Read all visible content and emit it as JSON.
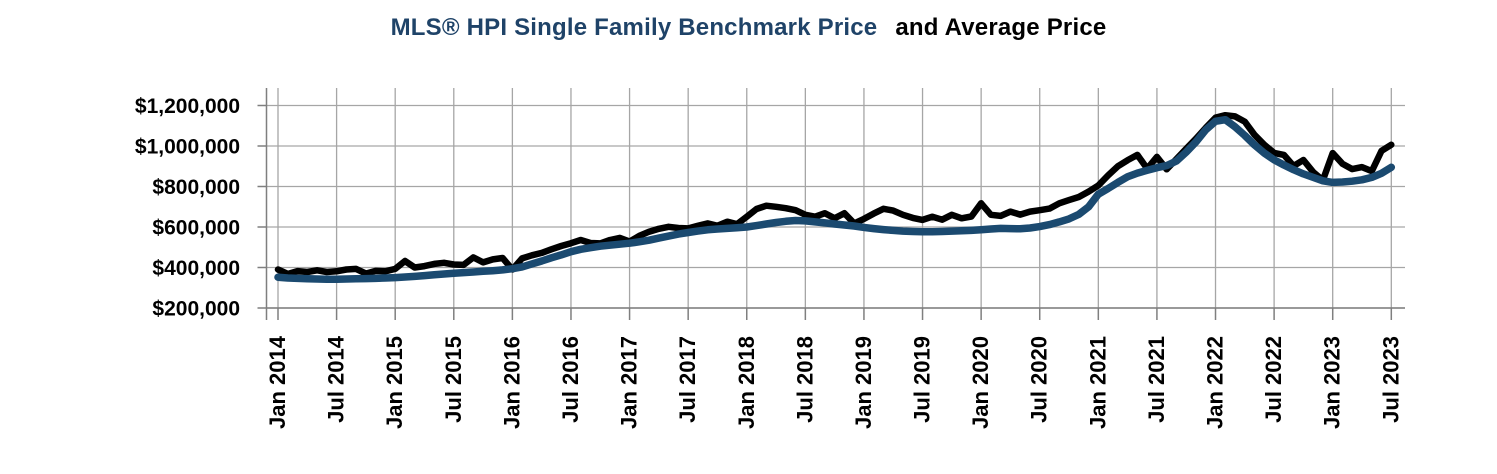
{
  "title": {
    "part1": "MLS® HPI Single Family Benchmark Price",
    "part2": "and Average Price"
  },
  "colors": {
    "title_accent": "#1F4368",
    "title_plain": "#000000",
    "benchmark_line": "#1B4A70",
    "average_line": "#000000",
    "gridline": "#A6A6A6",
    "axis": "#7F7F7F"
  },
  "chart_data": {
    "type": "line",
    "title": "MLS® HPI Single Family Benchmark Price and Average Price",
    "x_frequency": "monthly",
    "x_start": "Jan 2014",
    "x_end": "Jul 2023",
    "x_tick_labels": [
      "Jan 2014",
      "Jul 2014",
      "Jan 2015",
      "Jul 2015",
      "Jan 2016",
      "Jul 2016",
      "Jan 2017",
      "Jul 2017",
      "Jan 2018",
      "Jul 2018",
      "Jan 2019",
      "Jul 2019",
      "Jan 2020",
      "Jul 2020",
      "Jan 2021",
      "Jul 2021",
      "Jan 2022",
      "Jul 2022",
      "Jan 2023",
      "Jul 2023"
    ],
    "y_tick_labels": [
      "$200,000",
      "$400,000",
      "$600,000",
      "$800,000",
      "$1,000,000",
      "$1,200,000"
    ],
    "y_tick_values": [
      200000,
      400000,
      600000,
      800000,
      1000000,
      1200000
    ],
    "ylim": [
      200000,
      1200000
    ],
    "grid": true,
    "legend": "none",
    "series": [
      {
        "name": "Average Price",
        "color": "#000000",
        "values": [
          390000,
          368000,
          382000,
          378000,
          386000,
          378000,
          381000,
          390000,
          393000,
          370000,
          383000,
          381000,
          393000,
          432000,
          400000,
          407000,
          418000,
          423000,
          415000,
          413000,
          450000,
          425000,
          440000,
          447000,
          390000,
          445000,
          460000,
          472000,
          490000,
          506000,
          520000,
          536000,
          521000,
          519000,
          536000,
          546000,
          528000,
          556000,
          577000,
          591000,
          601000,
          595000,
          593000,
          606000,
          618000,
          606000,
          626000,
          614000,
          651000,
          689000,
          705000,
          700000,
          693000,
          683000,
          660000,
          651000,
          668000,
          643000,
          668000,
          618000,
          640000,
          666000,
          690000,
          681000,
          660000,
          645000,
          635000,
          651000,
          636000,
          660000,
          643000,
          652000,
          717000,
          660000,
          655000,
          676000,
          661000,
          676000,
          683000,
          691000,
          717000,
          733000,
          748000,
          775000,
          805000,
          855000,
          900000,
          930000,
          956000,
          888000,
          946000,
          885000,
          936000,
          986000,
          1036000,
          1090000,
          1140000,
          1152000,
          1146000,
          1120000,
          1055000,
          1006000,
          966000,
          956000,
          901000,
          931000,
          871000,
          831000,
          965000,
          912000,
          886000,
          896000,
          876000,
          976000,
          1006000
        ]
      },
      {
        "name": "MLS® HPI Single Family Benchmark Price",
        "color": "#1B4A70",
        "values": [
          352000,
          348000,
          346000,
          344000,
          343000,
          342000,
          342000,
          343000,
          344000,
          345000,
          346000,
          348000,
          350000,
          353000,
          356000,
          360000,
          364000,
          368000,
          372000,
          375000,
          378000,
          381000,
          384000,
          388000,
          394000,
          403000,
          418000,
          432000,
          448000,
          462000,
          478000,
          490000,
          498000,
          505000,
          510000,
          515000,
          520000,
          527000,
          535000,
          545000,
          555000,
          565000,
          573000,
          580000,
          586000,
          590000,
          593000,
          596000,
          600000,
          607000,
          615000,
          622000,
          628000,
          632000,
          630000,
          625000,
          620000,
          615000,
          610000,
          605000,
          598000,
          592000,
          587000,
          583000,
          580000,
          578000,
          577000,
          577000,
          578000,
          580000,
          581000,
          583000,
          586000,
          590000,
          593000,
          592000,
          591000,
          595000,
          602000,
          612000,
          625000,
          640000,
          662000,
          700000,
          762000,
          790000,
          820000,
          848000,
          866000,
          880000,
          893000,
          903000,
          926000,
          970000,
          1020000,
          1080000,
          1122000,
          1130000,
          1095000,
          1052000,
          1005000,
          965000,
          932000,
          906000,
          883000,
          862000,
          845000,
          828000,
          820000,
          822000,
          826000,
          833000,
          845000,
          865000,
          895000
        ]
      }
    ]
  }
}
